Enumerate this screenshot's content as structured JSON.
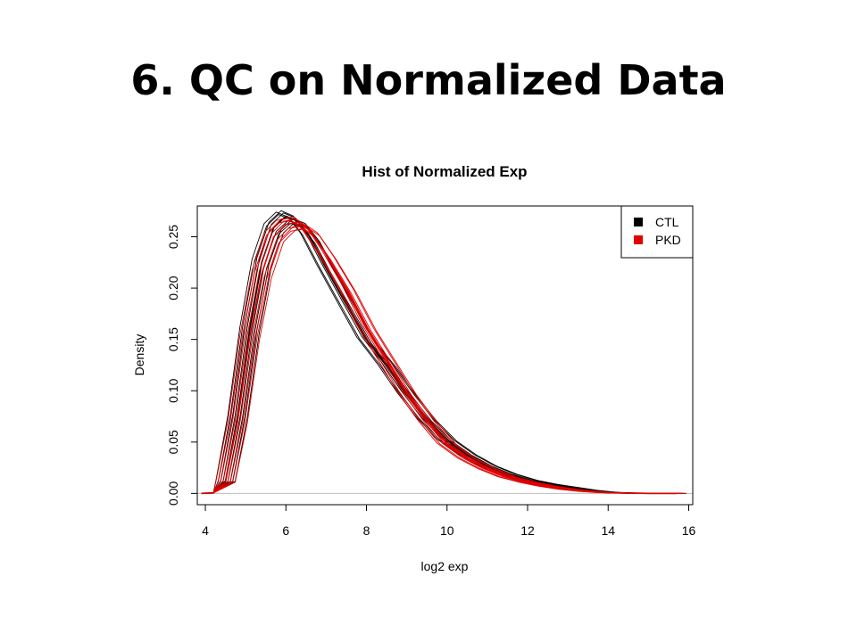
{
  "slide": {
    "title_number": "6.",
    "title_text": " QC on Normalized Data"
  },
  "chart_data": {
    "type": "line",
    "title": "Hist of Normalized Exp",
    "xlabel": "log2 exp",
    "ylabel": "Density",
    "xlim": [
      3.8,
      16.1
    ],
    "ylim": [
      -0.011,
      0.28
    ],
    "x_ticks": [
      "4",
      "6",
      "8",
      "10",
      "12",
      "14",
      "16"
    ],
    "y_ticks": [
      "0.00",
      "0.05",
      "0.10",
      "0.15",
      "0.20",
      "0.25"
    ],
    "baseline": 0,
    "grid": false,
    "legend": {
      "position": "top-right",
      "entries": [
        {
          "label": "CTL",
          "color": "#000000"
        },
        {
          "label": "PKD",
          "color": "#e00000"
        }
      ]
    },
    "x": [
      3.9,
      4.2,
      4.5,
      4.8,
      5.1,
      5.4,
      5.7,
      6.0,
      6.3,
      6.6,
      7.0,
      7.5,
      8.0,
      8.5,
      9.0,
      9.5,
      10.0,
      10.5,
      11.0,
      11.5,
      12.0,
      12.5,
      13.0,
      13.5,
      14.0,
      14.5,
      15.0,
      15.7
    ],
    "series": [
      {
        "group": "CTL",
        "color": "#000000",
        "values": [
          0,
          0.0005,
          0.012,
          0.075,
          0.16,
          0.225,
          0.259,
          0.27,
          0.265,
          0.25,
          0.22,
          0.185,
          0.15,
          0.125,
          0.097,
          0.072,
          0.052,
          0.038,
          0.027,
          0.019,
          0.013,
          0.009,
          0.006,
          0.003,
          0.001,
          0.0003,
          0,
          0
        ]
      },
      {
        "group": "PKD",
        "color": "#e00000",
        "values": [
          0,
          0.0004,
          0.011,
          0.07,
          0.152,
          0.214,
          0.25,
          0.262,
          0.264,
          0.256,
          0.233,
          0.2,
          0.162,
          0.13,
          0.098,
          0.071,
          0.048,
          0.034,
          0.024,
          0.016,
          0.011,
          0.007,
          0.004,
          0.002,
          0.0006,
          0.0002,
          0,
          0
        ]
      }
    ]
  }
}
